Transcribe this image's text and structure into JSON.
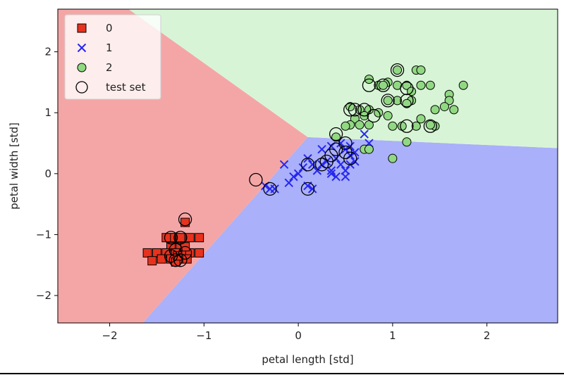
{
  "chart_data": {
    "type": "scatter",
    "title": "",
    "xlabel": "petal length [std]",
    "ylabel": "petal width [std]",
    "xlim": [
      -2.55,
      2.75
    ],
    "ylim": [
      -2.45,
      2.7
    ],
    "xticks": [
      -2,
      -1,
      0,
      1,
      2
    ],
    "yticks": [
      -2,
      -1,
      0,
      1,
      2
    ],
    "x_tick_labels": [
      "−2",
      "−1",
      "0",
      "1",
      "2"
    ],
    "y_tick_labels": [
      "−2",
      "−1",
      "0",
      "1",
      "2"
    ],
    "grid": false,
    "legend_position": "top-left",
    "decision_regions": [
      {
        "class": "0",
        "color": "#f4a6a6",
        "polygon": [
          [
            -2.55,
            2.7
          ],
          [
            -1.8,
            2.7
          ],
          [
            0.1,
            0.6
          ],
          [
            -1.65,
            -2.45
          ],
          [
            -2.55,
            -2.45
          ]
        ]
      },
      {
        "class": "1",
        "color": "#aab0f9",
        "polygon": [
          [
            0.1,
            0.6
          ],
          [
            2.75,
            0.42
          ],
          [
            2.75,
            -2.45
          ],
          [
            -1.65,
            -2.45
          ]
        ]
      },
      {
        "class": "2",
        "color": "#d8f4d6",
        "polygon": [
          [
            -1.8,
            2.7
          ],
          [
            2.75,
            2.7
          ],
          [
            2.75,
            0.42
          ],
          [
            0.1,
            0.6
          ]
        ]
      }
    ],
    "series": [
      {
        "name": "0",
        "marker": "square",
        "color": "#e8321e",
        "points": [
          [
            -1.2,
            -0.8
          ],
          [
            -1.3,
            -1.05
          ],
          [
            -1.25,
            -1.05
          ],
          [
            -1.15,
            -1.05
          ],
          [
            -1.35,
            -1.05
          ],
          [
            -1.4,
            -1.05
          ],
          [
            -1.05,
            -1.05
          ],
          [
            -1.25,
            -1.2
          ],
          [
            -1.35,
            -1.2
          ],
          [
            -1.3,
            -1.3
          ],
          [
            -1.2,
            -1.3
          ],
          [
            -1.4,
            -1.3
          ],
          [
            -1.5,
            -1.3
          ],
          [
            -1.6,
            -1.3
          ],
          [
            -1.05,
            -1.3
          ],
          [
            -1.15,
            -1.3
          ],
          [
            -1.25,
            -1.4
          ],
          [
            -1.35,
            -1.4
          ],
          [
            -1.45,
            -1.4
          ],
          [
            -1.55,
            -1.43
          ],
          [
            -1.3,
            -1.45
          ],
          [
            -1.2,
            -1.2
          ],
          [
            -1.28,
            -1.35
          ],
          [
            -1.18,
            -1.4
          ]
        ]
      },
      {
        "name": "1",
        "marker": "x",
        "color": "#2727f0",
        "points": [
          [
            0.7,
            0.65
          ],
          [
            0.45,
            0.5
          ],
          [
            0.5,
            0.4
          ],
          [
            0.55,
            0.3
          ],
          [
            0.6,
            0.35
          ],
          [
            0.75,
            0.5
          ],
          [
            0.35,
            0.45
          ],
          [
            0.25,
            0.4
          ],
          [
            0.4,
            0.25
          ],
          [
            0.3,
            0.2
          ],
          [
            0.45,
            0.15
          ],
          [
            0.5,
            0.05
          ],
          [
            0.55,
            0.15
          ],
          [
            0.35,
            0.05
          ],
          [
            0.25,
            0.15
          ],
          [
            0.2,
            0.05
          ],
          [
            0.15,
            0.15
          ],
          [
            0.1,
            0.25
          ],
          [
            0.05,
            0.1
          ],
          [
            0.0,
            0.0
          ],
          [
            -0.05,
            -0.05
          ],
          [
            -0.1,
            -0.15
          ],
          [
            -0.15,
            0.15
          ],
          [
            -0.25,
            -0.25
          ],
          [
            -0.3,
            -0.25
          ],
          [
            -0.35,
            -0.2
          ],
          [
            0.15,
            -0.25
          ],
          [
            0.1,
            -0.2
          ],
          [
            0.5,
            -0.05
          ],
          [
            0.35,
            0.0
          ],
          [
            0.4,
            -0.05
          ],
          [
            0.55,
            0.45
          ],
          [
            0.6,
            0.2
          ]
        ]
      },
      {
        "name": "2",
        "marker": "circle",
        "color": "#91d883",
        "points": [
          [
            1.05,
            1.7
          ],
          [
            1.25,
            1.7
          ],
          [
            1.3,
            1.7
          ],
          [
            0.75,
            1.55
          ],
          [
            0.95,
            1.5
          ],
          [
            0.85,
            1.45
          ],
          [
            0.9,
            1.45
          ],
          [
            1.05,
            1.45
          ],
          [
            1.15,
            1.45
          ],
          [
            1.3,
            1.45
          ],
          [
            1.4,
            1.45
          ],
          [
            1.75,
            1.45
          ],
          [
            1.2,
            1.35
          ],
          [
            1.6,
            1.3
          ],
          [
            1.05,
            1.2
          ],
          [
            1.2,
            1.2
          ],
          [
            0.95,
            1.2
          ],
          [
            1.15,
            1.15
          ],
          [
            1.6,
            1.2
          ],
          [
            1.55,
            1.1
          ],
          [
            1.65,
            1.05
          ],
          [
            1.45,
            1.05
          ],
          [
            0.55,
            1.1
          ],
          [
            0.65,
            1.05
          ],
          [
            0.75,
            1.05
          ],
          [
            0.85,
            1.0
          ],
          [
            0.95,
            0.95
          ],
          [
            1.3,
            0.9
          ],
          [
            0.7,
            0.95
          ],
          [
            0.6,
            0.9
          ],
          [
            1.0,
            0.78
          ],
          [
            1.1,
            0.78
          ],
          [
            1.25,
            0.78
          ],
          [
            1.45,
            0.78
          ],
          [
            1.4,
            0.8
          ],
          [
            0.75,
            0.8
          ],
          [
            0.65,
            0.8
          ],
          [
            0.55,
            0.8
          ],
          [
            0.5,
            0.78
          ],
          [
            0.4,
            0.6
          ],
          [
            1.15,
            0.52
          ],
          [
            0.7,
            0.4
          ],
          [
            1.0,
            0.25
          ],
          [
            0.75,
            0.4
          ]
        ]
      }
    ],
    "test_set": {
      "name": "test set",
      "marker": "open-circle",
      "points": [
        [
          1.05,
          1.7
        ],
        [
          0.75,
          1.45
        ],
        [
          0.9,
          1.45
        ],
        [
          1.15,
          1.4
        ],
        [
          0.95,
          1.2
        ],
        [
          1.15,
          1.2
        ],
        [
          0.6,
          1.05
        ],
        [
          0.7,
          1.05
        ],
        [
          0.55,
          1.05
        ],
        [
          0.8,
          0.95
        ],
        [
          1.15,
          0.78
        ],
        [
          1.4,
          0.78
        ],
        [
          0.4,
          0.65
        ],
        [
          0.5,
          0.5
        ],
        [
          0.4,
          0.4
        ],
        [
          0.35,
          0.3
        ],
        [
          0.3,
          0.2
        ],
        [
          0.55,
          0.25
        ],
        [
          0.5,
          0.35
        ],
        [
          0.25,
          0.15
        ],
        [
          0.1,
          0.15
        ],
        [
          0.1,
          -0.25
        ],
        [
          -0.45,
          -0.1
        ],
        [
          -0.3,
          -0.25
        ],
        [
          -1.2,
          -0.75
        ],
        [
          -1.35,
          -1.05
        ],
        [
          -1.25,
          -1.05
        ],
        [
          -1.3,
          -1.25
        ],
        [
          -1.2,
          -1.3
        ],
        [
          -1.35,
          -1.35
        ],
        [
          -1.3,
          -1.42
        ],
        [
          -1.25,
          -1.42
        ]
      ]
    },
    "legend": [
      {
        "label": "0",
        "marker": "square",
        "color": "#e8321e"
      },
      {
        "label": "1",
        "marker": "x",
        "color": "#2727f0"
      },
      {
        "label": "2",
        "marker": "circle",
        "color": "#91d883"
      },
      {
        "label": "test set",
        "marker": "open-circle",
        "color": "#000000"
      }
    ]
  }
}
